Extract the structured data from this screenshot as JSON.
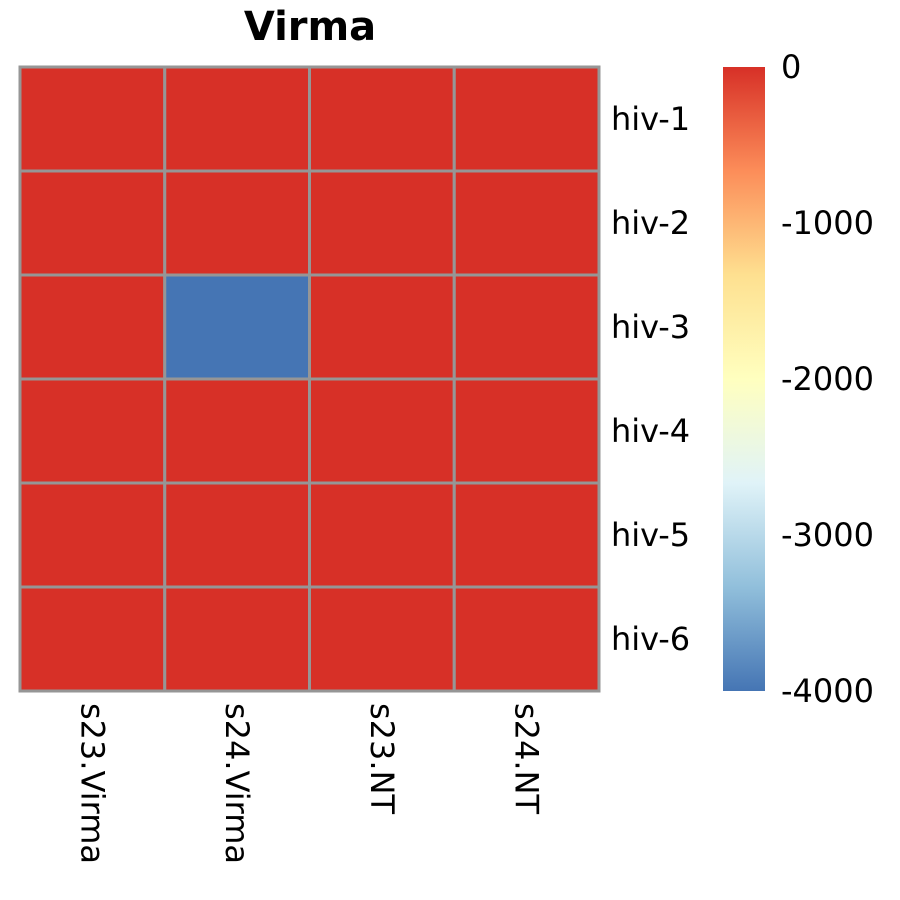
{
  "chart_data": {
    "type": "heatmap",
    "title": "Virma",
    "rows": [
      "hiv-1",
      "hiv-2",
      "hiv-3",
      "hiv-4",
      "hiv-5",
      "hiv-6"
    ],
    "columns": [
      "s23.Virma",
      "s24.Virma",
      "s23.NT",
      "s24.NT"
    ],
    "values": [
      [
        0,
        0,
        0,
        0
      ],
      [
        0,
        0,
        0,
        0
      ],
      [
        0,
        -4000,
        0,
        0
      ],
      [
        0,
        0,
        0,
        0
      ],
      [
        0,
        0,
        0,
        0
      ],
      [
        0,
        0,
        0,
        0
      ]
    ],
    "colorbar": {
      "min": -4000,
      "max": 0,
      "ticks": [
        0,
        -1000,
        -2000,
        -3000,
        -4000
      ],
      "tick_labels": [
        "0",
        "-1000",
        "-2000",
        "-3000",
        "-4000"
      ],
      "colors": [
        "#4575b4",
        "#91bfdb",
        "#e0f3f8",
        "#ffffbf",
        "#fee090",
        "#fc8d59",
        "#d73027"
      ]
    },
    "cell_border_color": "#969696",
    "legend_position": "right"
  }
}
